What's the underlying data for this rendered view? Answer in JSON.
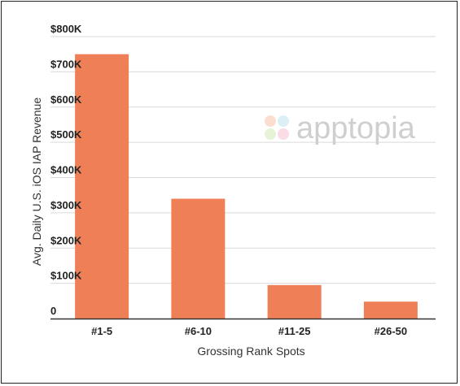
{
  "chart_data": {
    "type": "bar",
    "title": "",
    "xlabel": "Grossing Rank Spots",
    "ylabel": "Avg. Daily U.S. iOS IAP Revenue",
    "categories": [
      "#1-5",
      "#6-10",
      "#11-25",
      "#26-50"
    ],
    "values": [
      750000,
      340000,
      95000,
      48000
    ],
    "ylim": [
      0,
      800000
    ],
    "y_ticks": [
      0,
      100000,
      200000,
      300000,
      400000,
      500000,
      600000,
      700000,
      800000
    ],
    "y_tick_labels": [
      "0",
      "$100K",
      "$200K",
      "$300K",
      "$400K",
      "$500K",
      "$600K",
      "$700K",
      "$800K"
    ],
    "grid": true,
    "legend": "none",
    "bar_color": "#ef7f56",
    "grid_color": "#d9d9d9"
  },
  "watermark": {
    "text": "apptopia",
    "icon": "apptopia-logo-icon"
  }
}
